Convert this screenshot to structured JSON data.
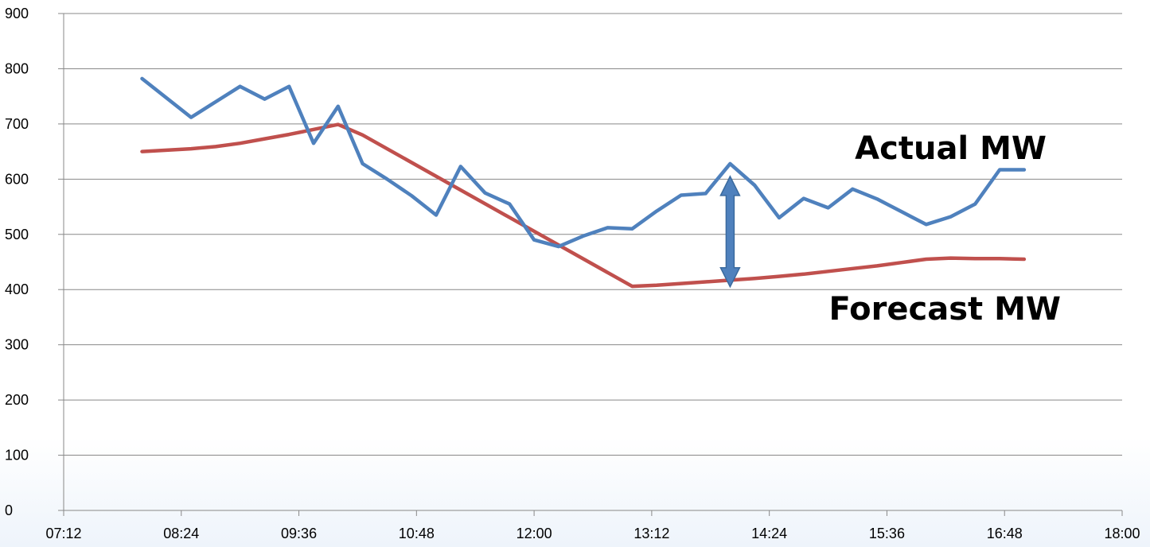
{
  "chart_data": {
    "type": "line",
    "title": "",
    "xlabel": "",
    "ylabel": "",
    "ylim": [
      0,
      900
    ],
    "yticks": [
      0,
      100,
      200,
      300,
      400,
      500,
      600,
      700,
      800,
      900
    ],
    "ytick_labels": [
      "0",
      "100",
      "200",
      "300",
      "400",
      "500",
      "600",
      "700",
      "800",
      "900"
    ],
    "xlim": [
      "07:12",
      "18:00"
    ],
    "xticks": [
      "07:12",
      "08:24",
      "09:36",
      "10:48",
      "12:00",
      "13:12",
      "14:24",
      "15:36",
      "16:48",
      "18:00"
    ],
    "grid": "horizontal",
    "legend": "none",
    "series": [
      {
        "color": "#4F81BD",
        "x": [
          "08:00",
          "08:30",
          "08:45",
          "09:00",
          "09:15",
          "09:30",
          "09:45",
          "10:00",
          "10:15",
          "10:30",
          "10:45",
          "11:00",
          "11:15",
          "11:30",
          "11:45",
          "12:00",
          "12:15",
          "12:30",
          "12:45",
          "13:00",
          "13:15",
          "13:30",
          "13:45",
          "14:00",
          "14:15",
          "14:30",
          "14:45",
          "15:00",
          "15:15",
          "15:30",
          "15:45",
          "16:00",
          "16:15",
          "16:30",
          "16:45",
          "17:00"
        ],
        "values": [
          782,
          712,
          740,
          768,
          745,
          768,
          665,
          732,
          628,
          600,
          570,
          535,
          623,
          575,
          555,
          490,
          478,
          497,
          512,
          510,
          542,
          571,
          574,
          628,
          589,
          530,
          565,
          548,
          582,
          564,
          541,
          518,
          532,
          555,
          617,
          617
        ]
      },
      {
        "color": "#C0504D",
        "x": [
          "08:00",
          "08:30",
          "08:45",
          "09:00",
          "09:15",
          "09:30",
          "10:00",
          "10:15",
          "13:00",
          "13:15",
          "13:30",
          "13:45",
          "14:00",
          "14:15",
          "14:30",
          "14:45",
          "15:00",
          "15:15",
          "15:30",
          "15:45",
          "16:00",
          "16:15",
          "16:30",
          "16:45",
          "17:00"
        ],
        "values": [
          650,
          655,
          659,
          665,
          673,
          681,
          699,
          680,
          406,
          408,
          411,
          414,
          417,
          420,
          424,
          428,
          433,
          438,
          443,
          449,
          455,
          457,
          456,
          456,
          455
        ]
      }
    ],
    "annotations": [
      "Actual MW",
      "Forecast MW"
    ],
    "difference_marker": {
      "x": "14:00",
      "y_from": 405,
      "y_to": 605,
      "color": "#4F81BD"
    }
  }
}
